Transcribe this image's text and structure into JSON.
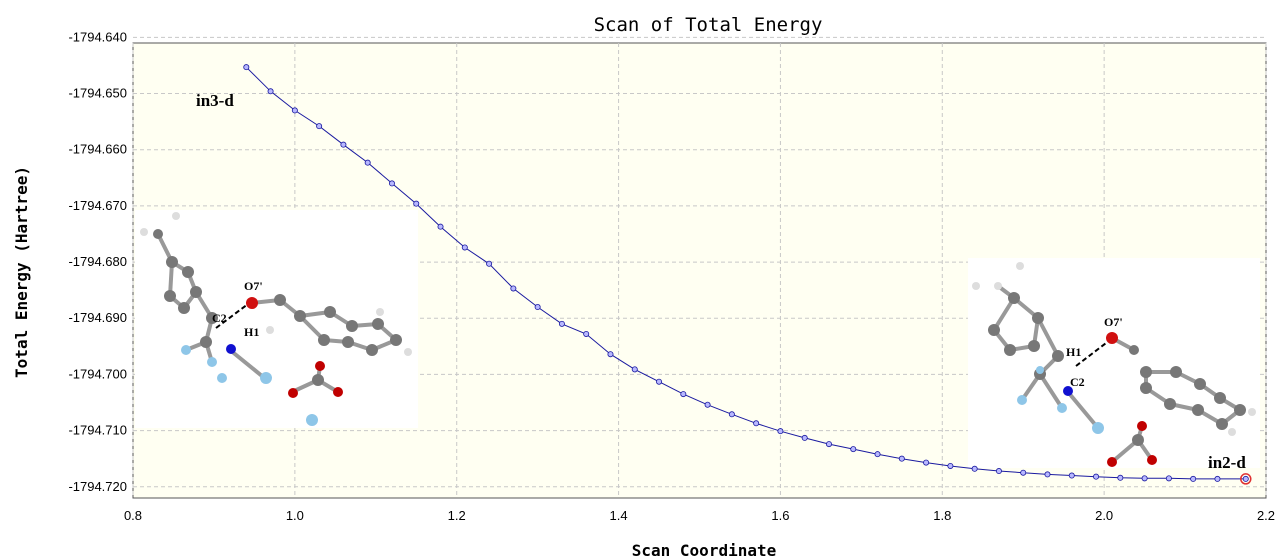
{
  "chart_data": {
    "type": "line",
    "title": "Scan of Total Energy",
    "xlabel": "Scan Coordinate",
    "ylabel": "Total Energy (Hartree)",
    "xlim": [
      0.8,
      2.2
    ],
    "ylim": [
      -1794.722,
      -1794.641
    ],
    "xticks": [
      "0.8",
      "1.0",
      "1.2",
      "1.4",
      "1.6",
      "1.8",
      "2.0",
      "2.2"
    ],
    "yticks": [
      "-1794.640",
      "-1794.650",
      "-1794.660",
      "-1794.670",
      "-1794.680",
      "-1794.690",
      "-1794.700",
      "-1794.710",
      "-1794.720"
    ],
    "grid": true,
    "series": [
      {
        "x": [
          0.94,
          0.97,
          1.0,
          1.03,
          1.06,
          1.09,
          1.12,
          1.15,
          1.18,
          1.21,
          1.24,
          1.27,
          1.3,
          1.33,
          1.36,
          1.39,
          1.42,
          1.45,
          1.48,
          1.51,
          1.54,
          1.57,
          1.6,
          1.63,
          1.66,
          1.69,
          1.72,
          1.75,
          1.78,
          1.81,
          1.84,
          1.87,
          1.9,
          1.93,
          1.96,
          1.99,
          2.02,
          2.05,
          2.08,
          2.11,
          2.14,
          2.175
        ],
        "y": [
          -1794.6453,
          -1794.6496,
          -1794.653,
          -1794.6558,
          -1794.6591,
          -1794.6623,
          -1794.666,
          -1794.6696,
          -1794.6737,
          -1794.6774,
          -1794.6803,
          -1794.6847,
          -1794.688,
          -1794.691,
          -1794.6928,
          -1794.6964,
          -1794.6991,
          -1794.7013,
          -1794.7035,
          -1794.7054,
          -1794.7071,
          -1794.7087,
          -1794.7101,
          -1794.7113,
          -1794.7124,
          -1794.7133,
          -1794.7142,
          -1794.715,
          -1794.7157,
          -1794.7163,
          -1794.7168,
          -1794.7172,
          -1794.7175,
          -1794.7178,
          -1794.718,
          -1794.7182,
          -1794.7184,
          -1794.7185,
          -1794.7185,
          -1794.7186,
          -1794.7186,
          -1794.7186
        ]
      }
    ],
    "annotations": [
      "in3-d",
      "in2-d"
    ]
  },
  "insets": {
    "left": {
      "labels": [
        "O7'",
        "C2",
        "H1"
      ]
    },
    "right": {
      "labels": [
        "O7'",
        "H1",
        "C2"
      ]
    }
  },
  "colors": {
    "plot_bg": "#fffff2",
    "grid": "#c8c8c8",
    "line": "#1a1aa0",
    "marker_fill": "#b8b8ff",
    "highlight": "#e03030"
  }
}
